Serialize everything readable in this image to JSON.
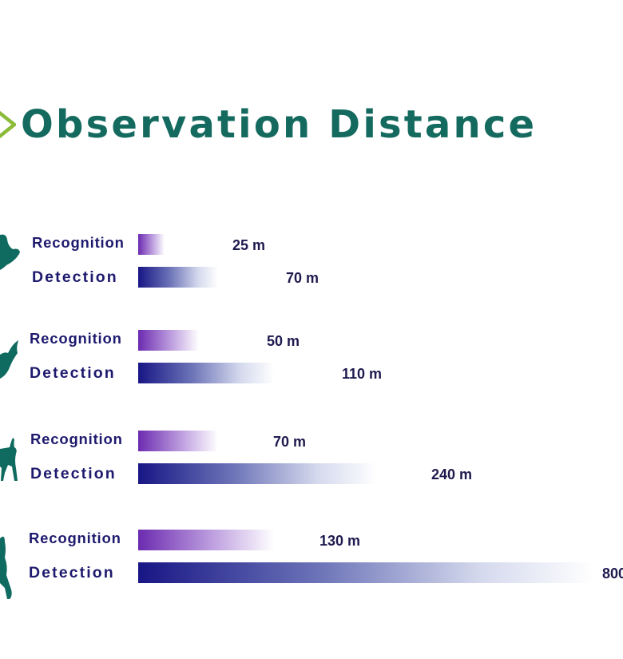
{
  "title": "Observation Distance",
  "colors": {
    "title": "#146a5f",
    "chevron": "#8cbb3a",
    "silhouette": "#0f6a5f",
    "label": "#1e1a6e",
    "recognition_bar": "#6c2bb0",
    "detection_bar": "#181685"
  },
  "chart_data": {
    "type": "bar",
    "orientation": "horizontal",
    "title": "Observation Distance",
    "unit": "m",
    "groups": [
      {
        "icon": "bird-icon",
        "bars": [
          {
            "label": "Recognition",
            "value": 25,
            "value_label": "25 m"
          },
          {
            "label": "Detection",
            "value": 70,
            "value_label": "70 m"
          }
        ]
      },
      {
        "icon": "eagle-icon",
        "bars": [
          {
            "label": "Recognition",
            "value": 50,
            "value_label": "50 m"
          },
          {
            "label": "Detection",
            "value": 110,
            "value_label": "110 m"
          }
        ]
      },
      {
        "icon": "dog-icon",
        "bars": [
          {
            "label": "Recognition",
            "value": 70,
            "value_label": "70 m"
          },
          {
            "label": "Detection",
            "value": 240,
            "value_label": "240 m"
          }
        ]
      },
      {
        "icon": "person-icon",
        "bars": [
          {
            "label": "Recognition",
            "value": 130,
            "value_label": "130 m"
          },
          {
            "label": "Detection",
            "value": 800,
            "value_label": "800"
          }
        ]
      }
    ]
  }
}
